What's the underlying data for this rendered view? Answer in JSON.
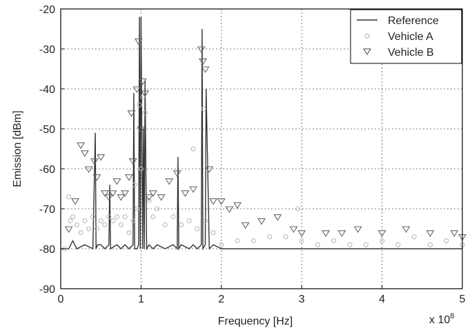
{
  "chart_data": {
    "type": "line",
    "title": "",
    "xlabel": "Frequency [Hz]",
    "ylabel": "Emission [dBm]",
    "x_exponent_label": "x 10",
    "x_exponent_power": "8",
    "xlim": [
      0,
      5
    ],
    "ylim": [
      -90,
      -20
    ],
    "x_ticks": [
      "0",
      "1",
      "2",
      "3",
      "4",
      "5"
    ],
    "y_ticks": [
      "-20",
      "-30",
      "-40",
      "-50",
      "-60",
      "-70",
      "-80",
      "-90"
    ],
    "grid": true,
    "legend_position": "top-right",
    "series": [
      {
        "name": "Reference",
        "style": "line",
        "color": "#333333",
        "x": [
          0.0,
          0.1,
          0.15,
          0.2,
          0.3,
          0.4,
          0.43,
          0.44,
          0.46,
          0.5,
          0.55,
          0.6,
          0.61,
          0.62,
          0.7,
          0.75,
          0.8,
          0.85,
          0.9,
          0.91,
          0.92,
          0.95,
          0.97,
          0.98,
          0.99,
          1.0,
          1.02,
          1.03,
          1.04,
          1.05,
          1.07,
          1.1,
          1.15,
          1.2,
          1.3,
          1.4,
          1.45,
          1.46,
          1.47,
          1.5,
          1.6,
          1.65,
          1.7,
          1.75,
          1.76,
          1.77,
          1.8,
          1.81,
          1.85,
          1.9,
          2.0,
          2.5,
          3.0,
          3.5,
          4.0,
          4.5,
          5.0
        ],
        "y": [
          -80,
          -80,
          -78,
          -80,
          -79,
          -80,
          -51,
          -80,
          -79,
          -79,
          -80,
          -79,
          -64,
          -80,
          -79,
          -80,
          -79,
          -80,
          -79,
          -41,
          -80,
          -80,
          -79,
          -22,
          -80,
          -22,
          -80,
          -50,
          -80,
          -38,
          -80,
          -79,
          -80,
          -79,
          -80,
          -79,
          -80,
          -57,
          -80,
          -79,
          -80,
          -79,
          -80,
          -79,
          -25,
          -80,
          -79,
          -40,
          -80,
          -79,
          -80,
          -80,
          -80,
          -80,
          -80,
          -80,
          -80
        ]
      },
      {
        "name": "Vehicle A",
        "style": "circle",
        "color": "#b8b8b8",
        "x": [
          0.05,
          0.1,
          0.12,
          0.15,
          0.2,
          0.25,
          0.3,
          0.35,
          0.4,
          0.45,
          0.5,
          0.55,
          0.6,
          0.65,
          0.7,
          0.75,
          0.8,
          0.85,
          0.9,
          0.92,
          0.95,
          0.98,
          1.0,
          1.02,
          1.05,
          1.1,
          1.15,
          1.2,
          1.3,
          1.4,
          1.5,
          1.6,
          1.65,
          1.7,
          1.78,
          1.8,
          1.9,
          2.0,
          2.2,
          2.4,
          2.6,
          2.8,
          2.95,
          3.0,
          3.2,
          3.4,
          3.6,
          3.8,
          4.0,
          4.2,
          4.4,
          4.6,
          4.8,
          5.0
        ],
        "y": [
          -80,
          -67,
          -73,
          -72,
          -74,
          -76,
          -73,
          -75,
          -72,
          -75,
          -73,
          -74,
          -72,
          -73,
          -72,
          -74,
          -72,
          -76,
          -73,
          -64,
          -70,
          -44,
          -60,
          -42,
          -46,
          -68,
          -72,
          -70,
          -74,
          -72,
          -74,
          -73,
          -55,
          -75,
          -45,
          -73,
          -76,
          -79,
          -78,
          -78,
          -77,
          -77,
          -70,
          -78,
          -79,
          -78,
          -79,
          -79,
          -78,
          -79,
          -77,
          -79,
          -78,
          -79
        ]
      },
      {
        "name": "Vehicle B",
        "style": "triangle",
        "color": "#666666",
        "x": [
          0.1,
          0.18,
          0.25,
          0.3,
          0.35,
          0.42,
          0.45,
          0.5,
          0.55,
          0.6,
          0.65,
          0.7,
          0.75,
          0.8,
          0.85,
          0.88,
          0.9,
          0.95,
          0.97,
          1.0,
          1.02,
          1.05,
          1.1,
          1.15,
          1.25,
          1.35,
          1.45,
          1.55,
          1.65,
          1.75,
          1.77,
          1.8,
          1.85,
          1.9,
          2.0,
          2.1,
          2.2,
          2.3,
          2.5,
          2.7,
          2.9,
          3.0,
          3.3,
          3.5,
          3.7,
          4.0,
          4.3,
          4.6,
          4.9,
          5.0
        ],
        "y": [
          -75,
          -68,
          -54,
          -56,
          -60,
          -58,
          -62,
          -57,
          -66,
          -67,
          -66,
          -63,
          -67,
          -66,
          -62,
          -46,
          -58,
          -40,
          -28,
          -50,
          -38,
          -41,
          -67,
          -66,
          -67,
          -63,
          -61,
          -66,
          -65,
          -30,
          -33,
          -35,
          -60,
          -68,
          -68,
          -70,
          -69,
          -74,
          -73,
          -72,
          -75,
          -76,
          -76,
          -76,
          -75,
          -76,
          -75,
          -76,
          -76,
          -77
        ]
      }
    ]
  }
}
